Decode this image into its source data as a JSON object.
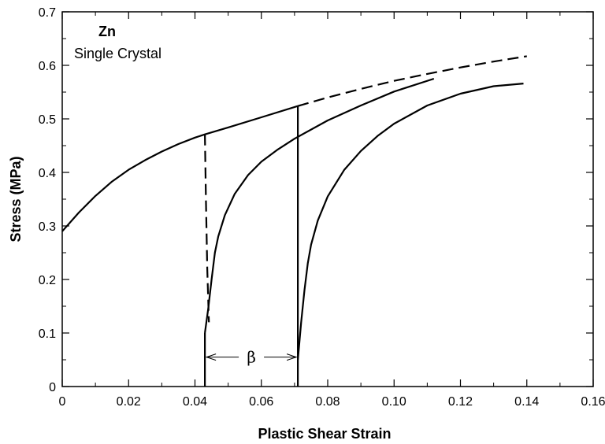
{
  "chart_data": {
    "type": "line",
    "title": "",
    "xlabel": "Plastic Shear Strain",
    "ylabel": "Stress (MPa)",
    "xlim": [
      0,
      0.16
    ],
    "ylim": [
      0,
      0.7
    ],
    "x_ticks": [
      {
        "value": 0,
        "label": "0"
      },
      {
        "value": 0.02,
        "label": "0.02"
      },
      {
        "value": 0.04,
        "label": "0.04"
      },
      {
        "value": 0.06,
        "label": "0.06"
      },
      {
        "value": 0.08,
        "label": "0.08"
      },
      {
        "value": 0.1,
        "label": "0.10"
      },
      {
        "value": 0.12,
        "label": "0.12"
      },
      {
        "value": 0.14,
        "label": "0.14"
      },
      {
        "value": 0.16,
        "label": "0.16"
      }
    ],
    "y_ticks": [
      {
        "value": 0,
        "label": "0"
      },
      {
        "value": 0.1,
        "label": "0.1"
      },
      {
        "value": 0.2,
        "label": "0.2"
      },
      {
        "value": 0.3,
        "label": "0.3"
      },
      {
        "value": 0.4,
        "label": "0.4"
      },
      {
        "value": 0.5,
        "label": "0.5"
      },
      {
        "value": 0.6,
        "label": "0.6"
      },
      {
        "value": 0.7,
        "label": "0.7"
      }
    ],
    "grid": false,
    "annotations": {
      "material": "Zn",
      "specimen": "Single Crystal",
      "beta": "β"
    },
    "beta_interval": [
      0.043,
      0.071
    ],
    "beta_y": 0.055,
    "series": [
      {
        "style": "solid",
        "x": [
          0,
          0.005,
          0.01,
          0.015,
          0.02,
          0.025,
          0.03,
          0.035,
          0.04,
          0.043,
          0.05,
          0.06,
          0.071
        ],
        "y": [
          0.29,
          0.325,
          0.356,
          0.383,
          0.405,
          0.423,
          0.439,
          0.453,
          0.465,
          0.471,
          0.484,
          0.503,
          0.524
        ]
      },
      {
        "style": "dashed",
        "x": [
          0.071,
          0.08,
          0.09,
          0.1,
          0.11,
          0.12,
          0.13,
          0.14
        ],
        "y": [
          0.524,
          0.54,
          0.556,
          0.571,
          0.584,
          0.596,
          0.607,
          0.617
        ]
      },
      {
        "style": "dashed",
        "x": [
          0.043,
          0.0433,
          0.0437,
          0.0442
        ],
        "y": [
          0.471,
          0.35,
          0.22,
          0.12
        ]
      },
      {
        "style": "solid",
        "x": [
          0.043,
          0.043
        ],
        "y": [
          0.0,
          0.1
        ]
      },
      {
        "style": "solid",
        "x": [
          0.043,
          0.044,
          0.045,
          0.046,
          0.047,
          0.049,
          0.052,
          0.056,
          0.06,
          0.065,
          0.07,
          0.08,
          0.09,
          0.1,
          0.112
        ],
        "y": [
          0.1,
          0.145,
          0.2,
          0.25,
          0.28,
          0.32,
          0.36,
          0.395,
          0.42,
          0.443,
          0.463,
          0.497,
          0.525,
          0.551,
          0.575
        ]
      },
      {
        "style": "solid",
        "x": [
          0.071,
          0.071
        ],
        "y": [
          0.0,
          0.524
        ]
      },
      {
        "style": "solid",
        "x": [
          0.071,
          0.072,
          0.073,
          0.074,
          0.075,
          0.077,
          0.08,
          0.085,
          0.09,
          0.095,
          0.1,
          0.11,
          0.12,
          0.13,
          0.139
        ],
        "y": [
          0.05,
          0.12,
          0.18,
          0.23,
          0.265,
          0.31,
          0.355,
          0.405,
          0.44,
          0.468,
          0.491,
          0.525,
          0.547,
          0.561,
          0.566
        ]
      }
    ]
  }
}
